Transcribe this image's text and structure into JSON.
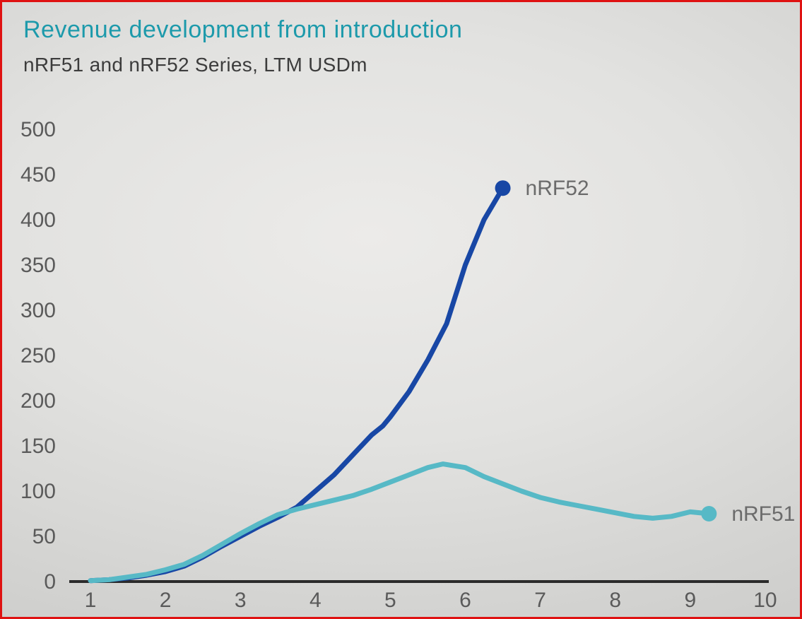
{
  "header": {
    "title": "Revenue development from introduction",
    "subtitle": "nRF51 and nRF52 Series, LTM USDm"
  },
  "colors": {
    "title_text": "#1d9aab",
    "subtitle_text": "#3c3c3c",
    "axis_text": "#5a5a5a",
    "axis_line": "#2b2b2b",
    "series_label_text": "#6b6b6b",
    "nrf52_line": "#1847a5",
    "nrf51_line": "#57b9c6",
    "frame_border": "#df1212"
  },
  "chart_data": {
    "type": "line",
    "title": "Revenue development from introduction",
    "subtitle": "nRF51 and nRF52 Series, LTM USDm",
    "xlabel": "",
    "ylabel": "",
    "xlim": [
      1,
      10
    ],
    "ylim": [
      0,
      500
    ],
    "x_ticks": [
      1,
      2,
      3,
      4,
      5,
      6,
      7,
      8,
      9,
      10
    ],
    "y_ticks": [
      500,
      450,
      400,
      350,
      300,
      250,
      200,
      150,
      100,
      50,
      0
    ],
    "grid": false,
    "legend_position": "line-end-labels",
    "series": [
      {
        "name": "nRF52",
        "color": "#1847a5",
        "end_marker": true,
        "end_label": "nRF52",
        "points": [
          [
            1,
            1
          ],
          [
            1.25,
            2
          ],
          [
            1.5,
            4
          ],
          [
            1.75,
            7
          ],
          [
            2,
            11
          ],
          [
            2.25,
            17
          ],
          [
            2.5,
            27
          ],
          [
            2.75,
            39
          ],
          [
            3,
            50
          ],
          [
            3.25,
            61
          ],
          [
            3.5,
            71
          ],
          [
            3.75,
            82
          ],
          [
            4,
            100
          ],
          [
            4.25,
            118
          ],
          [
            4.5,
            140
          ],
          [
            4.75,
            162
          ],
          [
            4.9,
            172
          ],
          [
            5,
            182
          ],
          [
            5.25,
            210
          ],
          [
            5.5,
            245
          ],
          [
            5.75,
            285
          ],
          [
            6,
            350
          ],
          [
            6.25,
            400
          ],
          [
            6.5,
            435
          ]
        ]
      },
      {
        "name": "nRF51",
        "color": "#57b9c6",
        "end_marker": true,
        "end_label": "nRF51",
        "points": [
          [
            1,
            1
          ],
          [
            1.25,
            2
          ],
          [
            1.5,
            5
          ],
          [
            1.75,
            8
          ],
          [
            2,
            13
          ],
          [
            2.25,
            19
          ],
          [
            2.5,
            29
          ],
          [
            2.75,
            41
          ],
          [
            3,
            53
          ],
          [
            3.25,
            64
          ],
          [
            3.5,
            74
          ],
          [
            3.75,
            80
          ],
          [
            4,
            85
          ],
          [
            4.25,
            90
          ],
          [
            4.5,
            95
          ],
          [
            4.75,
            102
          ],
          [
            5,
            110
          ],
          [
            5.25,
            118
          ],
          [
            5.5,
            126
          ],
          [
            5.7,
            130
          ],
          [
            6,
            126
          ],
          [
            6.25,
            116
          ],
          [
            6.5,
            108
          ],
          [
            6.75,
            100
          ],
          [
            7,
            93
          ],
          [
            7.25,
            88
          ],
          [
            7.5,
            84
          ],
          [
            7.75,
            80
          ],
          [
            8,
            76
          ],
          [
            8.25,
            72
          ],
          [
            8.5,
            70
          ],
          [
            8.75,
            72
          ],
          [
            9,
            77
          ],
          [
            9.25,
            75
          ]
        ]
      }
    ]
  }
}
